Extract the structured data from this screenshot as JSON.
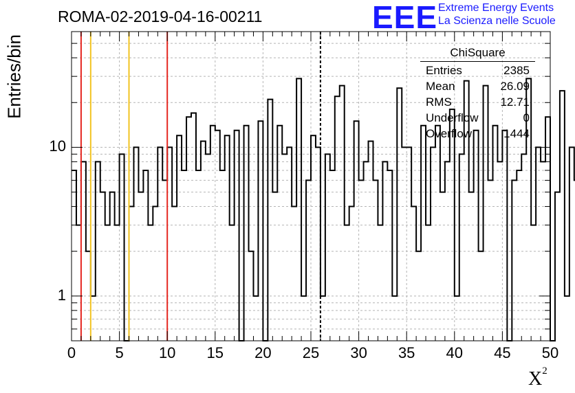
{
  "title": "ROMA-02-2019-04-16-00211",
  "logo": {
    "text": "EEE",
    "line1": "Extreme Energy Events",
    "line2": "La Scienza nelle Scuole",
    "color": "#1a1aff"
  },
  "stats": {
    "header": "ChiSquare",
    "rows": [
      {
        "label": "Entries",
        "value": "2385"
      },
      {
        "label": "Mean",
        "value": "26.09"
      },
      {
        "label": "RMS",
        "value": "12.71"
      },
      {
        "label": "Underflow",
        "value": "0"
      },
      {
        "label": "Overflow",
        "value": "1444"
      }
    ]
  },
  "chart_data": {
    "type": "histogram",
    "ylabel": "Entries/bin",
    "xlabel": "X",
    "xlabel_sup": "2",
    "xlim": [
      0,
      50
    ],
    "ylim": [
      0.5,
      60
    ],
    "yscale": "log",
    "grid": true,
    "bin_width": 0.5,
    "x_ticks": [
      0,
      5,
      10,
      15,
      20,
      25,
      30,
      35,
      40,
      45,
      50
    ],
    "x_tick_labels": [
      "0",
      "5",
      "10",
      "15",
      "20",
      "25",
      "30",
      "35",
      "40",
      "45",
      "50"
    ],
    "y_ticks": [
      1,
      10
    ],
    "y_tick_labels": [
      "1",
      "10"
    ],
    "values": [
      7,
      3,
      8,
      2,
      1,
      8,
      5,
      3,
      5,
      3,
      9,
      0,
      4,
      10,
      5,
      7,
      3,
      4,
      10,
      6,
      10,
      4,
      12,
      7,
      16,
      17,
      7,
      11,
      9,
      14,
      13,
      7,
      12,
      3,
      13,
      0,
      14,
      2,
      1,
      15,
      0,
      21,
      5,
      14,
      9,
      10,
      4,
      29,
      1,
      6,
      12,
      10,
      1,
      9,
      7,
      22,
      26,
      3,
      4,
      15,
      6,
      8,
      11,
      6,
      3,
      8,
      7,
      1,
      25,
      10,
      10,
      4,
      2,
      14,
      3,
      10,
      14,
      5,
      8,
      18,
      1,
      9,
      28,
      5,
      13,
      2,
      26,
      6,
      14,
      8,
      13,
      0,
      6,
      7,
      9,
      29,
      3,
      10,
      8,
      16,
      0,
      5,
      24,
      1,
      10,
      6,
      0,
      8,
      12,
      0,
      10,
      1,
      4,
      0,
      11,
      11,
      11,
      8,
      10,
      1,
      1,
      2,
      3,
      0,
      10,
      7,
      0,
      9,
      9
    ],
    "colors": {
      "line": "#000000",
      "red": "#e5261f",
      "yellow": "#f2c320",
      "grid": "#b4b4b4"
    },
    "markers": [
      {
        "x": 1,
        "color": "red",
        "style": "solid"
      },
      {
        "x": 2,
        "color": "yellow",
        "style": "solid"
      },
      {
        "x": 6,
        "color": "yellow",
        "style": "solid"
      },
      {
        "x": 10,
        "color": "red",
        "style": "solid"
      },
      {
        "x": 26,
        "color": "black",
        "style": "dashed"
      }
    ]
  }
}
